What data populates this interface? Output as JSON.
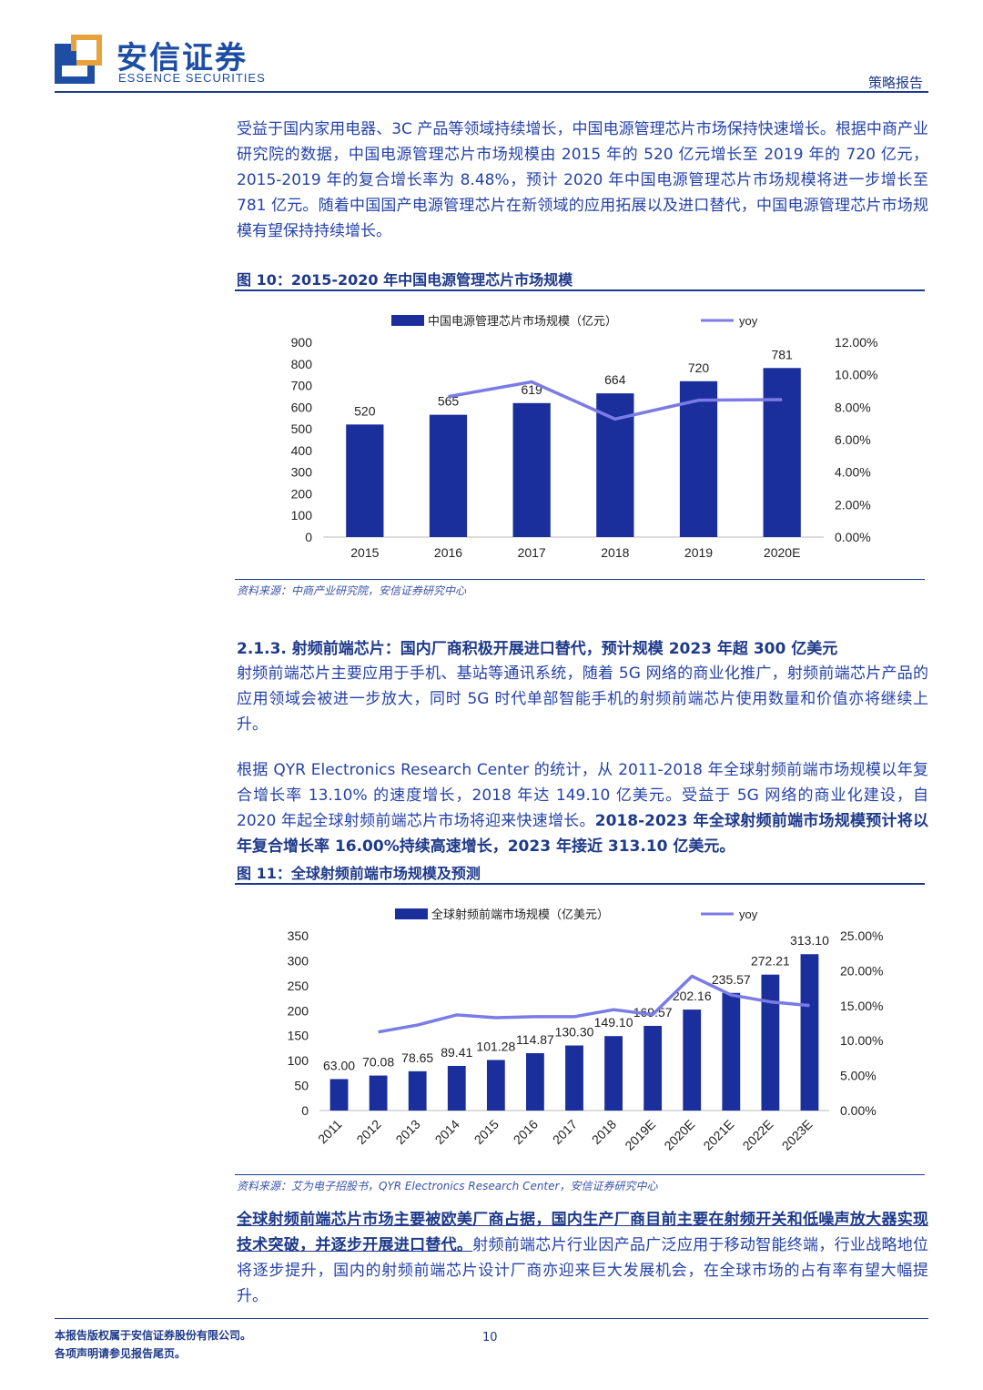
{
  "header": {
    "brand_cn": "安信证券",
    "brand_en": "ESSENCE SECURITIES",
    "report_type": "策略报告",
    "brand_color": "#1d4ea3",
    "accent_color": "#e8a23b"
  },
  "para1": "受益于国内家用电器、3C 产品等领域持续增长，中国电源管理芯片市场保持快速增长。根据中商产业研究院的数据，中国电源管理芯片市场规模由 2015 年的 520 亿元增长至 2019 年的 720 亿元，2015-2019 年的复合增长率为 8.48%，预计 2020 年中国电源管理芯片市场规模将进一步增长至 781 亿元。随着中国国产电源管理芯片在新领域的应用拓展以及进口替代，中国电源管理芯片市场规模有望保持持续增长。",
  "fig10": {
    "title": "图 10：2015-2020 年中国电源管理芯片市场规模",
    "source": "资料来源：中商产业研究院，安信证券研究中心"
  },
  "section": {
    "heading": "2.1.3. 射频前端芯片：国内厂商积极开展进口替代，预计规模 2023 年超 300 亿美元",
    "para2": "射频前端芯片主要应用于手机、基站等通讯系统，随着 5G 网络的商业化推广，射频前端芯片产品的应用领域会被进一步放大，同时 5G 时代单部智能手机的射频前端芯片使用数量和价值亦将继续上升。",
    "para3_plain": "根据 QYR Electronics Research Center 的统计，从 2011-2018 年全球射频前端市场规模以年复合增长率 13.10% 的速度增长，2018 年达 149.10 亿美元。受益于 5G 网络的商业化建设，自 2020 年起全球射频前端芯片市场将迎来快速增长。",
    "para3_bold": "2018-2023 年全球射频前端市场规模预计将以年复合增长率 16.00%持续高速增长，2023 年接近 313.10 亿美元。"
  },
  "fig11": {
    "title": "图 11：全球射频前端市场规模及预测",
    "source": "资料来源：艾为电子招股书，QYR Electronics Research Center，安信证券研究中心"
  },
  "para4": {
    "bold": "全球射频前端芯片市场主要被欧美厂商占据，国内生产厂商目前主要在射频开关和低噪声放大器实现技术突破，并逐步开展进口替代。",
    "plain": "射频前端芯片行业因产品广泛应用于移动智能终端，行业战略地位将逐步提升，国内的射频前端芯片设计厂商亦迎来巨大发展机会，在全球市场的占有率有望大幅提升。"
  },
  "footer": {
    "line1": "本报告版权属于安信证券股份有限公司。",
    "line2": "各项声明请参见报告尾页。",
    "page": "10"
  },
  "chart_data": [
    {
      "type": "bar",
      "categories": [
        "2015",
        "2016",
        "2017",
        "2018",
        "2019",
        "2020E"
      ],
      "series": [
        {
          "name": "中国电源管理芯片市场规模（亿元）",
          "values": [
            520,
            565,
            619,
            664,
            720,
            781
          ],
          "axis": "left",
          "color": "#1a2e9c"
        },
        {
          "name": "yoy",
          "type": "line",
          "values": [
            null,
            8.65,
            9.56,
            7.27,
            8.43,
            8.47
          ],
          "axis": "right",
          "unit": "%",
          "color": "#7b7be6"
        }
      ],
      "data_labels": [
        "520",
        "565",
        "619",
        "664",
        "720",
        "781"
      ],
      "ylim": [
        0,
        900
      ],
      "yticks": [
        "0",
        "100",
        "200",
        "300",
        "400",
        "500",
        "600",
        "700",
        "800",
        "900"
      ],
      "y2lim": [
        0,
        12
      ],
      "y2ticks": [
        "0.00%",
        "2.00%",
        "4.00%",
        "6.00%",
        "8.00%",
        "10.00%",
        "12.00%"
      ],
      "legend": "top"
    },
    {
      "type": "bar",
      "categories": [
        "2011",
        "2012",
        "2013",
        "2014",
        "2015",
        "2016",
        "2017",
        "2018",
        "2019E",
        "2020E",
        "2021E",
        "2022E",
        "2023E"
      ],
      "series": [
        {
          "name": "全球射频前端市场规模（亿美元）",
          "values": [
            63.0,
            70.08,
            78.65,
            89.41,
            101.28,
            114.87,
            130.3,
            149.1,
            169.57,
            202.16,
            235.57,
            272.21,
            313.1
          ],
          "axis": "left",
          "color": "#1a2e9c"
        },
        {
          "name": "yoy",
          "type": "line",
          "values": [
            null,
            11.24,
            12.23,
            13.68,
            13.28,
            13.42,
            13.43,
            14.43,
            13.73,
            19.22,
            16.53,
            15.55,
            15.02
          ],
          "axis": "right",
          "unit": "%",
          "color": "#7b7be6"
        }
      ],
      "data_labels": [
        "63.00",
        "70.08",
        "78.65",
        "89.41",
        "101.28",
        "114.87",
        "130.30",
        "149.10",
        "169.57",
        "202.16",
        "235.57",
        "272.21",
        "313.10"
      ],
      "ylim": [
        0,
        350
      ],
      "yticks": [
        "0",
        "50",
        "100",
        "150",
        "200",
        "250",
        "300",
        "350"
      ],
      "y2lim": [
        0,
        25
      ],
      "y2ticks": [
        "0.00%",
        "5.00%",
        "10.00%",
        "15.00%",
        "20.00%",
        "25.00%"
      ],
      "legend": "top"
    }
  ]
}
